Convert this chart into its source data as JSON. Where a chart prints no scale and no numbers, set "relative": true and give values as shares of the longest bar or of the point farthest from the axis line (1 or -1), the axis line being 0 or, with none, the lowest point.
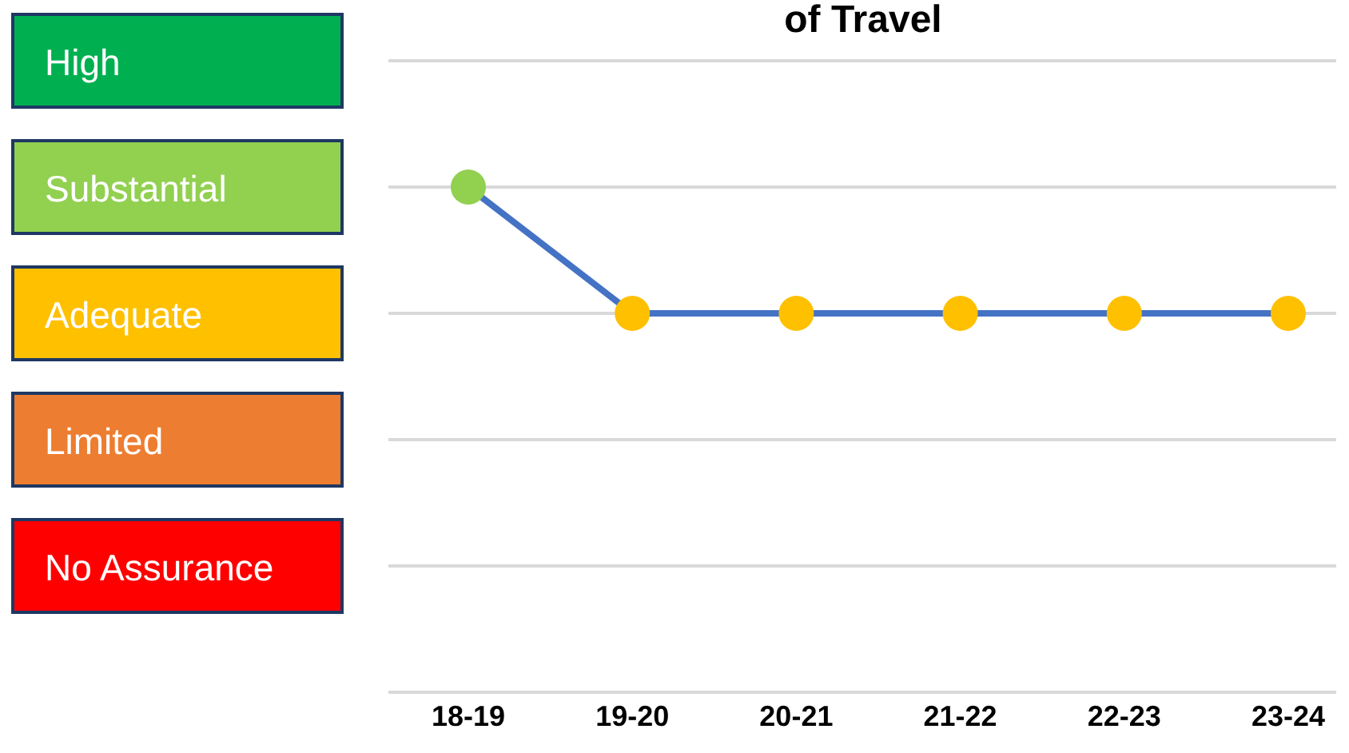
{
  "chart_data": {
    "type": "line",
    "title": "of Travel",
    "categories": [
      "18-19",
      "19-20",
      "20-21",
      "21-22",
      "22-23",
      "23-24"
    ],
    "series": [
      {
        "color": "#4472c4",
        "colors": [
          "#92d050",
          "#ffc000",
          "#ffc000",
          "#ffc000",
          "#ffc000",
          "#ffc000"
        ],
        "values": [
          1,
          0.75,
          0.75,
          0.75,
          0.75,
          0.75
        ]
      }
    ],
    "relative": true,
    "annotations": [
      "High",
      "Substantial",
      "Adequate",
      "Limited",
      "No Assurance"
    ],
    "grid": "y",
    "marker": "circle",
    "line_style": "solid"
  }
}
